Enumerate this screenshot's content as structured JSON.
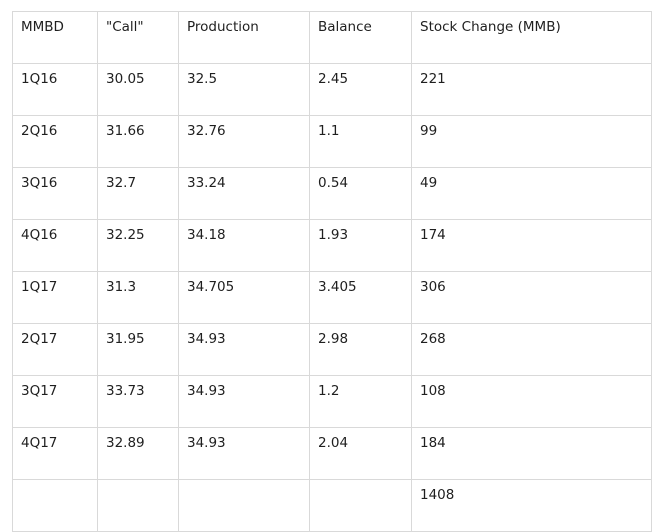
{
  "table": {
    "headers": [
      "MMBD",
      "\"Call\"",
      "Production",
      "Balance",
      "Stock Change (MMB)"
    ],
    "rows": [
      [
        "1Q16",
        "30.05",
        "32.5",
        "2.45",
        "221"
      ],
      [
        "2Q16",
        "31.66",
        "32.76",
        "1.1",
        "99"
      ],
      [
        "3Q16",
        "32.7",
        "33.24",
        "0.54",
        "49"
      ],
      [
        "4Q16",
        "32.25",
        "34.18",
        "1.93",
        "174"
      ],
      [
        "1Q17",
        "31.3",
        "34.705",
        "3.405",
        "306"
      ],
      [
        "2Q17",
        "31.95",
        "34.93",
        "2.98",
        "268"
      ],
      [
        "3Q17",
        "33.73",
        "34.93",
        "1.2",
        "108"
      ],
      [
        "4Q17",
        "32.89",
        "34.93",
        "2.04",
        "184"
      ],
      [
        "",
        "",
        "",
        "",
        "1408"
      ]
    ]
  }
}
